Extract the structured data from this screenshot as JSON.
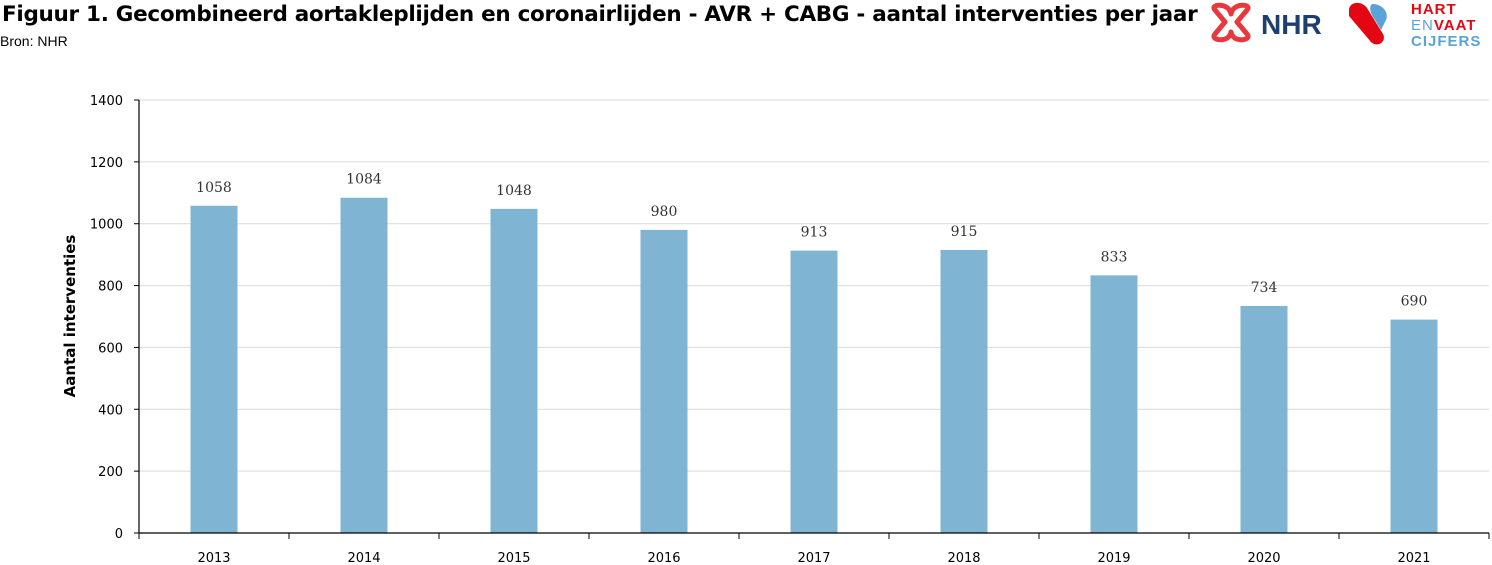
{
  "header": {
    "title": "Figuur 1. Gecombineerd aortakleplijden en coronairlijden - AVR + CABG - aantal interventies per jaar",
    "subtitle": "Bron: NHR"
  },
  "logos": {
    "nhr": {
      "text": "NHR",
      "icon": "nhr-cross-icon",
      "color": "#1c3f6e",
      "accent": "#e8383d"
    },
    "hartenvaatcijfers": {
      "line1": "HART",
      "line2a": "EN",
      "line2b": "VAAT",
      "line3": "CIJFERS",
      "colors": {
        "red": "#e30613",
        "blue": "#5aa3d8"
      }
    }
  },
  "chart_data": {
    "type": "bar",
    "categories": [
      "2013",
      "2014",
      "2015",
      "2016",
      "2017",
      "2018",
      "2019",
      "2020",
      "2021"
    ],
    "values": [
      1058,
      1084,
      1048,
      980,
      913,
      915,
      833,
      734,
      690
    ],
    "ylabel": "Aantal interventies",
    "xlabel": "",
    "ylim": [
      0,
      1400
    ],
    "yticks": [
      0,
      200,
      400,
      600,
      800,
      1000,
      1200,
      1400
    ],
    "grid": true,
    "bar_color": "#7fb5d3",
    "data_labels": true
  }
}
